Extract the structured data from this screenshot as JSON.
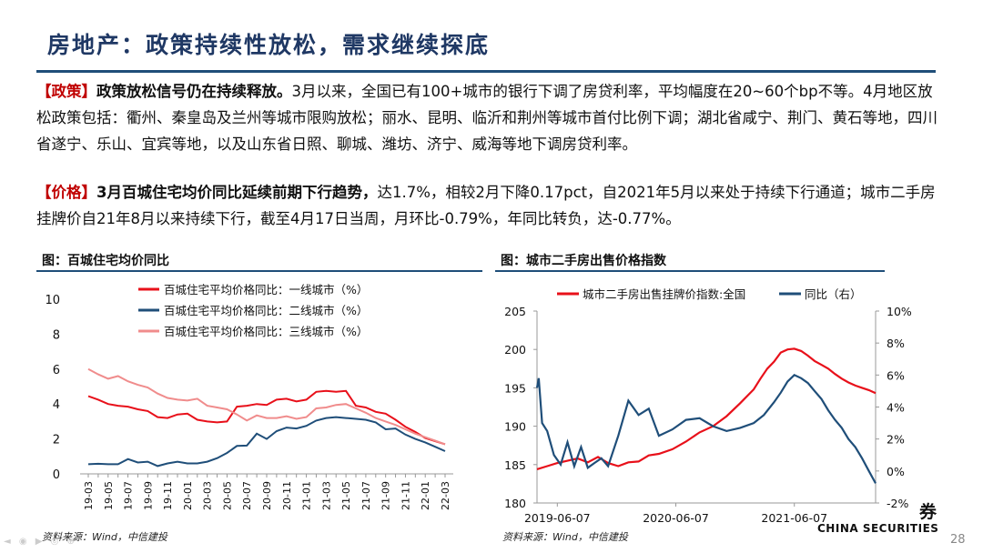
{
  "title": "房地产：政策持续性放松，需求继续探底",
  "paragraphs": {
    "policy": {
      "tag": "【政策】",
      "lead": "政策放松信号仍在持续释放。",
      "body": "3月以来，全国已有100+城市的银行下调了房贷利率，平均幅度在20~60个bp不等。4月地区放松政策包括：衢州、秦皇岛及兰州等城市限购放松；丽水、昆明、临沂和荆州等城市首付比例下调；湖北省咸宁、荆门、黄石等地，四川省遂宁、乐山、宜宾等地，以及山东省日照、聊城、潍坊、济宁、威海等地下调房贷利率。"
    },
    "price": {
      "tag": "【价格】",
      "lead": "3月百城住宅均价同比延续前期下行趋势，",
      "body": "达1.7%，相较2月下降0.17pct，自2021年5月以来处于持续下行通道；城市二手房挂牌价自21年8月以来持续下行，截至4月17日当周，月环比-0.79%，年同比转负，达-0.77%。"
    }
  },
  "figures": {
    "left": {
      "title": "图：百城住宅均价同比",
      "source": "资料来源：Wind，中信建投"
    },
    "right": {
      "title": "图：城市二手房出售价格指数",
      "source": "资料来源：Wind，中信建投"
    }
  },
  "chart_data": [
    {
      "type": "line",
      "title": "百城住宅均价同比",
      "ylim": [
        0,
        10
      ],
      "yticks": [
        "0",
        "2",
        "4",
        "6",
        "8",
        "10"
      ],
      "categories": [
        "19-03",
        "19-04",
        "19-05",
        "19-06",
        "19-07",
        "19-08",
        "19-09",
        "19-10",
        "19-11",
        "19-12",
        "20-01",
        "20-02",
        "20-03",
        "20-04",
        "20-05",
        "20-06",
        "20-07",
        "20-08",
        "20-09",
        "20-10",
        "20-11",
        "20-12",
        "21-01",
        "21-02",
        "21-03",
        "21-04",
        "21-05",
        "21-06",
        "21-07",
        "21-08",
        "21-09",
        "21-10",
        "21-11",
        "21-12",
        "22-01",
        "22-02",
        "22-03"
      ],
      "xtick_labels": [
        "19-03",
        "19-05",
        "19-07",
        "19-09",
        "19-11",
        "20-01",
        "20-03",
        "20-05",
        "20-07",
        "20-09",
        "20-11",
        "21-01",
        "21-03",
        "21-05",
        "21-07",
        "21-09",
        "21-11",
        "22-01",
        "22-03"
      ],
      "series": [
        {
          "name": "百城住宅平均价格同比：一线城市（%）",
          "color": "#e8101a",
          "values": [
            4.45,
            4.25,
            4.0,
            3.9,
            3.85,
            3.7,
            3.6,
            3.25,
            3.2,
            3.4,
            3.45,
            3.1,
            3.0,
            2.95,
            3.0,
            3.85,
            3.9,
            4.0,
            3.95,
            4.25,
            4.3,
            4.15,
            4.25,
            4.7,
            4.75,
            4.7,
            4.75,
            3.9,
            3.8,
            3.55,
            3.45,
            3.1,
            2.7,
            2.4,
            2.05,
            1.87,
            1.7
          ]
        },
        {
          "name": "百城住宅平均价格同比：二线城市（%）",
          "color": "#1f4e79",
          "values": [
            0.55,
            0.58,
            0.55,
            0.55,
            0.85,
            0.65,
            0.7,
            0.45,
            0.6,
            0.7,
            0.6,
            0.6,
            0.7,
            0.9,
            1.2,
            1.6,
            1.62,
            2.3,
            2.0,
            2.45,
            2.65,
            2.6,
            2.75,
            3.05,
            3.2,
            3.25,
            3.2,
            3.15,
            3.1,
            2.95,
            2.55,
            2.6,
            2.25,
            2.0,
            1.8,
            1.55,
            1.3
          ]
        },
        {
          "name": "百城住宅平均价格同比：三线城市（%）",
          "color": "#f08c8c",
          "values": [
            6.0,
            5.7,
            5.45,
            5.6,
            5.3,
            5.1,
            4.95,
            4.6,
            4.35,
            4.25,
            4.2,
            4.3,
            3.9,
            3.8,
            3.7,
            3.4,
            3.05,
            3.35,
            3.2,
            3.2,
            3.3,
            3.15,
            3.25,
            3.75,
            3.8,
            3.95,
            4.0,
            3.75,
            3.5,
            3.2,
            3.0,
            2.8,
            2.55,
            2.3,
            2.1,
            1.9,
            1.7
          ]
        }
      ]
    },
    {
      "type": "line",
      "title": "城市二手房出售价格指数",
      "left_axis": {
        "ylim": [
          180,
          205
        ],
        "yticks": [
          "180",
          "185",
          "190",
          "195",
          "200",
          "205"
        ]
      },
      "right_axis": {
        "ylim": [
          -2,
          10
        ],
        "yticks": [
          "-2%",
          "0%",
          "2%",
          "4%",
          "6%",
          "8%",
          "10%"
        ]
      },
      "x_range": [
        "2019-04-07",
        "2022-04-17"
      ],
      "xtick_labels": [
        "2019-06-07",
        "2020-06-07",
        "2021-06-07"
      ],
      "series": [
        {
          "name": "城市二手房出售挂牌价指数:全国",
          "axis": "left",
          "color": "#e8101a",
          "x": [
            0,
            0.03,
            0.06,
            0.09,
            0.12,
            0.15,
            0.18,
            0.21,
            0.24,
            0.27,
            0.3,
            0.33,
            0.36,
            0.4,
            0.44,
            0.48,
            0.52,
            0.56,
            0.6,
            0.64,
            0.66,
            0.68,
            0.7,
            0.72,
            0.74,
            0.76,
            0.78,
            0.8,
            0.82,
            0.84,
            0.86,
            0.88,
            0.9,
            0.92,
            0.94,
            0.96,
            0.98,
            1.0
          ],
          "values": [
            184.4,
            184.8,
            185.2,
            185.5,
            185.8,
            185.3,
            186.0,
            185.2,
            184.8,
            185.3,
            185.4,
            186.2,
            186.4,
            187.0,
            188.0,
            189.2,
            190.0,
            191.3,
            193.0,
            194.8,
            196.2,
            197.5,
            198.4,
            199.6,
            200.0,
            200.1,
            199.8,
            199.2,
            198.5,
            198.0,
            197.5,
            196.8,
            196.2,
            195.7,
            195.3,
            195.0,
            194.7,
            194.3
          ]
        },
        {
          "name": "同比（右）",
          "axis": "right",
          "color": "#1f4e79",
          "x": [
            0,
            0.005,
            0.015,
            0.03,
            0.05,
            0.07,
            0.09,
            0.11,
            0.13,
            0.15,
            0.17,
            0.19,
            0.21,
            0.24,
            0.27,
            0.3,
            0.33,
            0.36,
            0.4,
            0.44,
            0.48,
            0.52,
            0.56,
            0.6,
            0.64,
            0.67,
            0.7,
            0.72,
            0.74,
            0.76,
            0.78,
            0.8,
            0.82,
            0.84,
            0.86,
            0.88,
            0.9,
            0.92,
            0.94,
            0.96,
            0.98,
            1.0
          ],
          "values": [
            5.2,
            5.8,
            3.0,
            2.5,
            1.0,
            0.4,
            1.8,
            0.3,
            1.5,
            0.2,
            0.5,
            0.8,
            0.3,
            2.2,
            4.4,
            3.5,
            3.9,
            2.2,
            2.6,
            3.2,
            3.3,
            2.8,
            2.5,
            2.7,
            3.0,
            3.5,
            4.3,
            4.9,
            5.6,
            6.0,
            5.8,
            5.5,
            5.0,
            4.5,
            3.8,
            3.2,
            2.7,
            2.0,
            1.5,
            0.8,
            0.0,
            -0.77
          ]
        }
      ]
    }
  ],
  "branding": {
    "logo": "CHINA SECURITIES",
    "logo_mark": "券",
    "page_number": "28",
    "nav_dots": "◄ ◉ ▶ ◎ ⊕"
  }
}
